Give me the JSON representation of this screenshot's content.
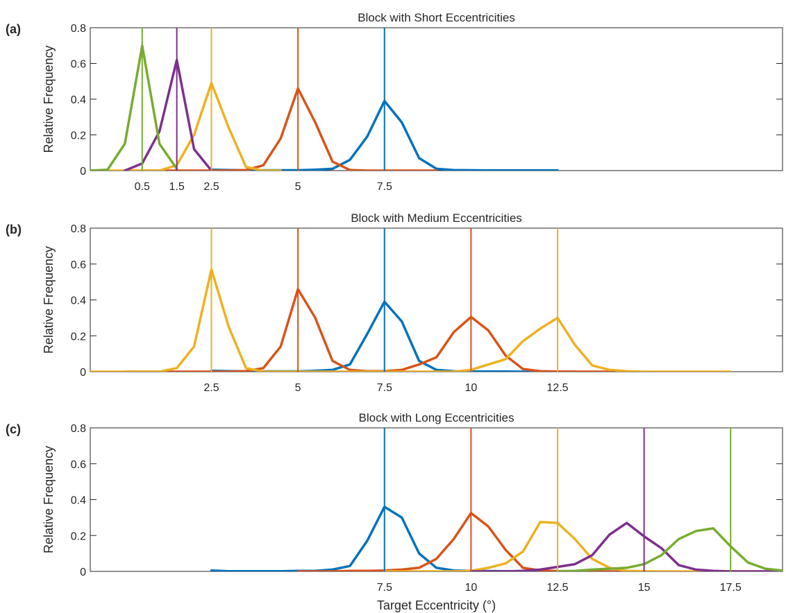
{
  "chart_data": [
    {
      "type": "line",
      "panel_label": "(a)",
      "title": "Block with Short Eccentricities",
      "xlabel": "",
      "ylabel": "Relative Frequency",
      "xlim": [
        -1,
        19
      ],
      "ylim": [
        0,
        0.8
      ],
      "yticks": [
        0,
        0.2,
        0.4,
        0.6,
        0.8
      ],
      "ytick_labels": [
        "0",
        "0.2",
        "0.4",
        "0.6",
        "0.8"
      ],
      "xticks": [
        0.5,
        1.5,
        2.5,
        5,
        7.5
      ],
      "xtick_labels": [
        "0.5",
        "1.5",
        "2.5",
        "5",
        "7.5"
      ],
      "grid": false,
      "targets": [
        {
          "x": 0.5,
          "color": "#77ac30"
        },
        {
          "x": 1.5,
          "color": "#7e2f8e"
        },
        {
          "x": 2.5,
          "color": "#edb120"
        },
        {
          "x": 5,
          "color": "#d95319"
        },
        {
          "x": 7.5,
          "color": "#0072bd"
        }
      ],
      "series": [
        {
          "color": "#0072bd",
          "x": [
            2.5,
            3,
            3.5,
            4,
            4.5,
            5,
            5.5,
            6,
            6.5,
            7,
            7.5,
            8,
            8.5,
            9,
            9.5,
            10,
            10.5,
            11,
            11.5,
            12,
            12.5
          ],
          "values": [
            0.005,
            0.003,
            0.002,
            0.002,
            0.002,
            0.002,
            0.005,
            0.01,
            0.06,
            0.19,
            0.39,
            0.27,
            0.07,
            0.01,
            0.003,
            0.002,
            0.001,
            0.001,
            0.001,
            0.001,
            0.001
          ]
        },
        {
          "color": "#d95319",
          "x": [
            0,
            0.5,
            1,
            1.5,
            2,
            2.5,
            3,
            3.5,
            4,
            4.5,
            5,
            5.5,
            6,
            6.5,
            7,
            7.5,
            8,
            8.5,
            9
          ],
          "values": [
            0,
            0,
            0,
            0,
            0,
            0,
            0,
            0.003,
            0.03,
            0.18,
            0.46,
            0.27,
            0.05,
            0.003,
            0,
            0,
            0,
            0,
            0
          ]
        },
        {
          "color": "#edb120",
          "x": [
            -1,
            -0.5,
            0,
            0.5,
            1,
            1.5,
            2,
            2.5,
            3,
            3.5,
            4,
            4.5
          ],
          "values": [
            0,
            0,
            0,
            0,
            0,
            0.03,
            0.2,
            0.49,
            0.24,
            0.02,
            0,
            0
          ]
        },
        {
          "color": "#7e2f8e",
          "x": [
            0,
            0.5,
            1,
            1.5,
            2,
            2.5
          ],
          "values": [
            0,
            0.04,
            0.22,
            0.62,
            0.12,
            0
          ]
        },
        {
          "color": "#77ac30",
          "x": [
            -1,
            -0.5,
            0,
            0.5,
            1,
            1.5
          ],
          "values": [
            0,
            0.005,
            0.15,
            0.7,
            0.15,
            0.01
          ]
        }
      ]
    },
    {
      "type": "line",
      "panel_label": "(b)",
      "title": "Block with Medium Eccentricities",
      "xlabel": "",
      "ylabel": "Relative Frequency",
      "xlim": [
        -1,
        19
      ],
      "ylim": [
        0,
        0.8
      ],
      "yticks": [
        0,
        0.2,
        0.4,
        0.6,
        0.8
      ],
      "ytick_labels": [
        "0",
        "0.2",
        "0.4",
        "0.6",
        "0.8"
      ],
      "xticks": [
        2.5,
        5,
        7.5,
        10,
        12.5
      ],
      "xtick_labels": [
        "2.5",
        "5",
        "7.5",
        "10",
        "12.5"
      ],
      "grid": false,
      "targets": [
        {
          "x": 2.5,
          "color": "#edb120"
        },
        {
          "x": 5,
          "color": "#d95319"
        },
        {
          "x": 7.5,
          "color": "#0072bd"
        },
        {
          "x": 10,
          "color": "#d95319"
        },
        {
          "x": 12.5,
          "color": "#edb120"
        }
      ],
      "series": [
        {
          "color": "#0072bd",
          "x": [
            2.5,
            3,
            3.5,
            4,
            4.5,
            5,
            5.5,
            6,
            6.5,
            7,
            7.5,
            8,
            8.5,
            9,
            9.5,
            10,
            10.5,
            11,
            11.5,
            12,
            12.5,
            13
          ],
          "values": [
            0.005,
            0.003,
            0.002,
            0.002,
            0.002,
            0.002,
            0.005,
            0.01,
            0.04,
            0.21,
            0.39,
            0.28,
            0.06,
            0.01,
            0.003,
            0.001,
            0.001,
            0.001,
            0,
            0,
            0,
            0
          ]
        },
        {
          "color": "#d95319",
          "x": [
            0,
            0.5,
            1,
            1.5,
            2,
            2.5,
            3,
            3.5,
            4,
            4.5,
            5,
            5.5,
            6,
            6.5,
            7,
            7.5,
            8,
            8.5,
            9,
            9.5,
            10,
            10.5,
            11,
            11.5,
            12,
            12.5,
            13,
            13.5,
            14
          ],
          "values": [
            0,
            0,
            0,
            0,
            0,
            0,
            0,
            0.003,
            0.02,
            0.14,
            0.46,
            0.3,
            0.06,
            0.01,
            0.003,
            0.003,
            0.01,
            0.04,
            0.08,
            0.22,
            0.305,
            0.23,
            0.09,
            0.015,
            0.003,
            0.001,
            0,
            0,
            0
          ]
        },
        {
          "color": "#edb120",
          "x": [
            -1,
            -0.5,
            0,
            0.5,
            1,
            1.5,
            2,
            2.5,
            3,
            3.5,
            4,
            4.5,
            5,
            5.5,
            6,
            6.5,
            7,
            7.5,
            8,
            8.5,
            9,
            9.5,
            10,
            10.5,
            11,
            11.5,
            12,
            12.5,
            13,
            13.5,
            14,
            14.5,
            15,
            15.5,
            16,
            16.5,
            17,
            17.5
          ],
          "values": [
            0,
            0,
            0,
            0,
            0,
            0.02,
            0.14,
            0.57,
            0.25,
            0.02,
            0,
            0,
            0,
            0,
            0,
            0,
            0,
            0,
            0,
            0,
            0,
            0,
            0.01,
            0.04,
            0.07,
            0.17,
            0.24,
            0.3,
            0.15,
            0.035,
            0.01,
            0.003,
            0,
            0,
            0,
            0,
            0,
            0
          ]
        }
      ]
    },
    {
      "type": "line",
      "panel_label": "(c)",
      "title": "Block with Long Eccentricities",
      "xlabel": "Target Eccentricity (°)",
      "ylabel": "Relative Frequency",
      "xlim": [
        -1,
        19
      ],
      "ylim": [
        0,
        0.8
      ],
      "yticks": [
        0,
        0.2,
        0.4,
        0.6,
        0.8
      ],
      "ytick_labels": [
        "0",
        "0.2",
        "0.4",
        "0.6",
        "0.8"
      ],
      "xticks": [
        7.5,
        10,
        12.5,
        15,
        17.5
      ],
      "xtick_labels": [
        "7.5",
        "10",
        "12.5",
        "15",
        "17.5"
      ],
      "grid": false,
      "targets": [
        {
          "x": 7.5,
          "color": "#0072bd"
        },
        {
          "x": 10,
          "color": "#d95319"
        },
        {
          "x": 12.5,
          "color": "#edb120"
        },
        {
          "x": 15,
          "color": "#7e2f8e"
        },
        {
          "x": 17.5,
          "color": "#77ac30"
        }
      ],
      "series": [
        {
          "color": "#0072bd",
          "x": [
            2.5,
            3,
            3.5,
            4,
            4.5,
            5,
            5.5,
            6,
            6.5,
            7,
            7.5,
            8,
            8.5,
            9,
            9.5,
            10,
            10.5,
            11,
            11.5,
            12,
            12.5
          ],
          "values": [
            0.005,
            0.001,
            0.001,
            0.001,
            0.001,
            0.003,
            0.003,
            0.01,
            0.03,
            0.17,
            0.36,
            0.3,
            0.1,
            0.02,
            0.005,
            0.003,
            0.002,
            0.001,
            0,
            0,
            0
          ]
        },
        {
          "color": "#d95319",
          "x": [
            5,
            5.5,
            6,
            6.5,
            7,
            7.5,
            8,
            8.5,
            9,
            9.5,
            10,
            10.5,
            11,
            11.5,
            12,
            12.5,
            13,
            13.5,
            14,
            14.5,
            15
          ],
          "values": [
            0,
            0,
            0,
            0.003,
            0.003,
            0.005,
            0.01,
            0.02,
            0.07,
            0.18,
            0.325,
            0.25,
            0.12,
            0.02,
            0.005,
            0.002,
            0.001,
            0,
            0,
            0,
            0
          ]
        },
        {
          "color": "#edb120",
          "x": [
            7.5,
            8,
            8.5,
            9,
            9.5,
            10,
            10.5,
            11,
            11.5,
            12,
            12.5,
            13,
            13.5,
            14,
            14.5,
            15,
            15.5,
            16,
            16.5,
            17,
            17.5,
            18,
            18.5,
            19
          ],
          "values": [
            0,
            0,
            0,
            0,
            0,
            0.003,
            0.02,
            0.045,
            0.11,
            0.275,
            0.27,
            0.18,
            0.07,
            0.02,
            0.003,
            0.001,
            0,
            0,
            0,
            0,
            0,
            0,
            0,
            0
          ]
        },
        {
          "color": "#7e2f8e",
          "x": [
            10,
            10.5,
            11,
            11.5,
            12,
            12.5,
            13,
            13.5,
            14,
            14.5,
            15,
            15.5,
            16,
            16.5,
            17,
            17.5,
            18,
            18.5,
            19
          ],
          "values": [
            0,
            0,
            0,
            0.003,
            0.01,
            0.025,
            0.04,
            0.09,
            0.205,
            0.27,
            0.195,
            0.13,
            0.035,
            0.01,
            0.003,
            0,
            0,
            0,
            0
          ]
        },
        {
          "color": "#77ac30",
          "x": [
            12.5,
            13,
            13.5,
            14,
            14.5,
            15,
            15.5,
            16,
            16.5,
            17,
            17.5,
            18,
            18.5,
            19
          ],
          "values": [
            0,
            0.003,
            0.01,
            0.015,
            0.02,
            0.04,
            0.09,
            0.18,
            0.225,
            0.24,
            0.14,
            0.05,
            0.015,
            0.005
          ]
        }
      ]
    }
  ]
}
